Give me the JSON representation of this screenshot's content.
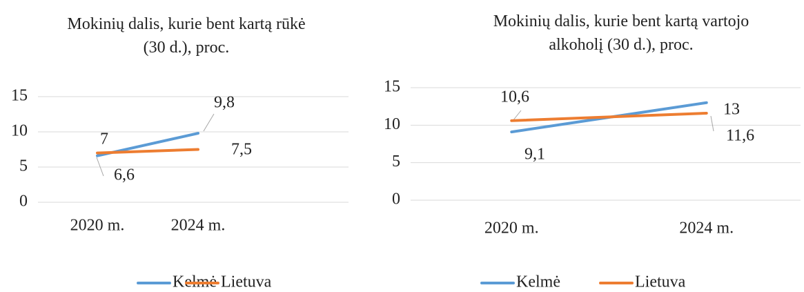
{
  "chart_data": [
    {
      "type": "line",
      "title": "Mokinių dalis, kurie bent kartą rūkė (30 d.), proc.",
      "categories": [
        "2020 m.",
        "2024 m."
      ],
      "series": [
        {
          "name": "Kelmė",
          "color": "#5b9bd5",
          "values": [
            6.6,
            9.8
          ],
          "value_labels": [
            "6,6",
            "9,8"
          ]
        },
        {
          "name": "Lietuva",
          "color": "#ed7d31",
          "values": [
            7,
            7.5
          ],
          "value_labels": [
            "7",
            "7,5"
          ]
        }
      ],
      "ylim": [
        0,
        15
      ],
      "yticks": [
        0,
        5,
        10,
        15
      ],
      "grid": true,
      "legend": "bottom"
    },
    {
      "type": "line",
      "title": "Mokinių dalis, kurie bent kartą vartojo alkoholį (30 d.), proc.",
      "categories": [
        "2020 m.",
        "2024 m."
      ],
      "series": [
        {
          "name": "Kelmė",
          "color": "#5b9bd5",
          "values": [
            9.1,
            13
          ],
          "value_labels": [
            "9,1",
            "13"
          ]
        },
        {
          "name": "Lietuva",
          "color": "#ed7d31",
          "values": [
            10.6,
            11.6
          ],
          "value_labels": [
            "10,6",
            "11,6"
          ]
        }
      ],
      "ylim": [
        0,
        15
      ],
      "yticks": [
        0,
        5,
        10,
        15
      ],
      "grid": true,
      "legend": "bottom"
    }
  ]
}
